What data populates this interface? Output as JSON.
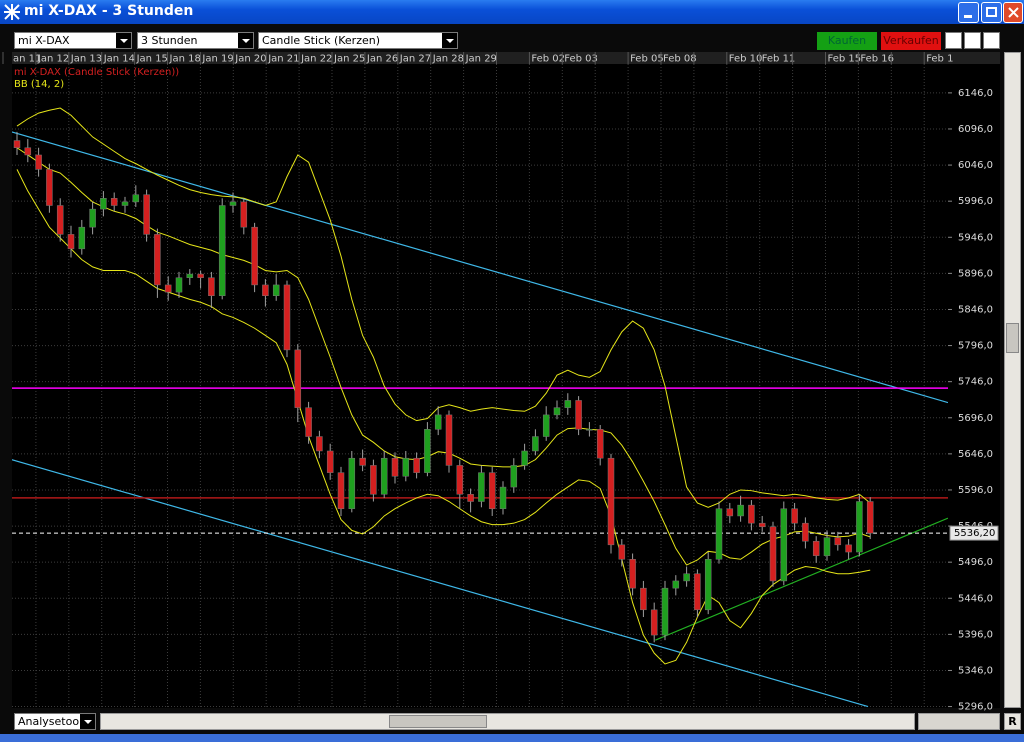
{
  "window": {
    "title": "mi X-DAX - 3 Stunden",
    "instrument": "mi X-DAX",
    "interval": "3 Stunden",
    "chart_style": "Candle Stick (Kerzen)",
    "buy": "Kaufen",
    "sell": "Verkaufen",
    "tool": "Analysetool",
    "reset": "R"
  },
  "chart_data": {
    "type": "candlestick",
    "grid": true,
    "categories": [
      "an 11",
      "Jan 12",
      "Jan 13",
      "Jan 14",
      "Jan 15",
      "Jan 18",
      "Jan 19",
      "Jan 20",
      "Jan 21",
      "Jan 22",
      "Jan 25",
      "Jan 26",
      "Jan 27",
      "Jan 28",
      "Jan 29",
      null,
      "Feb 02",
      "Feb 03",
      null,
      "Feb 05",
      "Feb 08",
      null,
      "Feb 10",
      "Feb 11",
      null,
      "Feb 15",
      "Feb 16",
      null,
      "Feb 1"
    ],
    "ylim": [
      5294,
      6186
    ],
    "yticks": [
      {
        "value": 6146,
        "label": "6146,0"
      },
      {
        "value": 6096,
        "label": "6096,0"
      },
      {
        "value": 6046,
        "label": "6046,0"
      },
      {
        "value": 5996,
        "label": "5996,0"
      },
      {
        "value": 5946,
        "label": "5946,0"
      },
      {
        "value": 5896,
        "label": "5896,0"
      },
      {
        "value": 5846,
        "label": "5846,0"
      },
      {
        "value": 5796,
        "label": "5796,0"
      },
      {
        "value": 5746,
        "label": "5746,0"
      },
      {
        "value": 5696,
        "label": "5696,0"
      },
      {
        "value": 5646,
        "label": "5646,0"
      },
      {
        "value": 5596,
        "label": "5596,0"
      },
      {
        "value": 5546,
        "label": "5546,0"
      },
      {
        "value": 5496,
        "label": "5496,0"
      },
      {
        "value": 5446,
        "label": "5446,0"
      },
      {
        "value": 5396,
        "label": "5396,0"
      },
      {
        "value": 5346,
        "label": "5346,0"
      },
      {
        "value": 5296,
        "label": "5296,0"
      }
    ],
    "series": [
      {
        "name": "mi X-DAX (Candle Stick (Kerzen))",
        "color": "#d42020",
        "up_color": "#1fa01f",
        "candles": [
          [
            6080,
            6092,
            6060,
            6070
          ],
          [
            6070,
            6082,
            6050,
            6060
          ],
          [
            6060,
            6070,
            6030,
            6040
          ],
          [
            6040,
            6048,
            5980,
            5990
          ],
          [
            5990,
            6000,
            5940,
            5950
          ],
          [
            5950,
            5962,
            5918,
            5930
          ],
          [
            5930,
            5970,
            5922,
            5960
          ],
          [
            5960,
            5995,
            5950,
            5985
          ],
          [
            5985,
            6010,
            5975,
            6000
          ],
          [
            6000,
            6008,
            5982,
            5990
          ],
          [
            5990,
            6002,
            5980,
            5995
          ],
          [
            5995,
            6018,
            5988,
            6005
          ],
          [
            6005,
            6012,
            5940,
            5950
          ],
          [
            5950,
            5958,
            5862,
            5880
          ],
          [
            5880,
            5892,
            5858,
            5870
          ],
          [
            5870,
            5898,
            5862,
            5890
          ],
          [
            5890,
            5902,
            5880,
            5895
          ],
          [
            5895,
            5900,
            5875,
            5890
          ],
          [
            5890,
            5898,
            5848,
            5865
          ],
          [
            5865,
            6000,
            5860,
            5990
          ],
          [
            5990,
            6008,
            5980,
            5995
          ],
          [
            5995,
            6000,
            5950,
            5960
          ],
          [
            5960,
            5966,
            5870,
            5880
          ],
          [
            5880,
            5888,
            5850,
            5865
          ],
          [
            5865,
            5895,
            5858,
            5880
          ],
          [
            5880,
            5886,
            5780,
            5790
          ],
          [
            5790,
            5798,
            5690,
            5710
          ],
          [
            5710,
            5718,
            5660,
            5670
          ],
          [
            5670,
            5678,
            5640,
            5650
          ],
          [
            5650,
            5660,
            5610,
            5620
          ],
          [
            5620,
            5628,
            5560,
            5570
          ],
          [
            5570,
            5650,
            5565,
            5640
          ],
          [
            5640,
            5652,
            5622,
            5630
          ],
          [
            5630,
            5638,
            5580,
            5590
          ],
          [
            5590,
            5650,
            5585,
            5640
          ],
          [
            5640,
            5648,
            5605,
            5615
          ],
          [
            5615,
            5650,
            5608,
            5640
          ],
          [
            5640,
            5648,
            5612,
            5620
          ],
          [
            5620,
            5690,
            5615,
            5680
          ],
          [
            5680,
            5712,
            5672,
            5700
          ],
          [
            5700,
            5706,
            5620,
            5630
          ],
          [
            5630,
            5638,
            5570,
            5590
          ],
          [
            5590,
            5598,
            5565,
            5580
          ],
          [
            5580,
            5630,
            5572,
            5620
          ],
          [
            5620,
            5628,
            5560,
            5570
          ],
          [
            5570,
            5608,
            5562,
            5600
          ],
          [
            5600,
            5640,
            5592,
            5630
          ],
          [
            5630,
            5660,
            5624,
            5650
          ],
          [
            5650,
            5680,
            5644,
            5670
          ],
          [
            5670,
            5712,
            5664,
            5700
          ],
          [
            5700,
            5720,
            5694,
            5710
          ],
          [
            5710,
            5730,
            5700,
            5720
          ],
          [
            5720,
            5726,
            5672,
            5680
          ],
          [
            5680,
            5690,
            5670,
            5680
          ],
          [
            5680,
            5686,
            5630,
            5640
          ],
          [
            5640,
            5646,
            5508,
            5520
          ],
          [
            5520,
            5528,
            5490,
            5500
          ],
          [
            5500,
            5508,
            5450,
            5460
          ],
          [
            5460,
            5470,
            5420,
            5430
          ],
          [
            5430,
            5440,
            5385,
            5395
          ],
          [
            5395,
            5470,
            5388,
            5460
          ],
          [
            5460,
            5478,
            5450,
            5470
          ],
          [
            5470,
            5490,
            5462,
            5480
          ],
          [
            5480,
            5486,
            5420,
            5430
          ],
          [
            5430,
            5510,
            5424,
            5500
          ],
          [
            5500,
            5580,
            5494,
            5570
          ],
          [
            5570,
            5578,
            5550,
            5560
          ],
          [
            5560,
            5588,
            5552,
            5575
          ],
          [
            5575,
            5582,
            5540,
            5550
          ],
          [
            5550,
            5560,
            5538,
            5545
          ],
          [
            5545,
            5552,
            5462,
            5470
          ],
          [
            5470,
            5580,
            5464,
            5570
          ],
          [
            5570,
            5578,
            5540,
            5550
          ],
          [
            5550,
            5558,
            5515,
            5525
          ],
          [
            5525,
            5532,
            5495,
            5505
          ],
          [
            5505,
            5540,
            5498,
            5530
          ],
          [
            5530,
            5538,
            5512,
            5520
          ],
          [
            5520,
            5528,
            5500,
            5510
          ],
          [
            5510,
            5590,
            5504,
            5580
          ],
          [
            5580,
            5586,
            5528,
            5536.2
          ]
        ]
      },
      {
        "name": "BB (14, 2)",
        "color": "#e6e619",
        "upper": [
          6100,
          6110,
          6118,
          6122,
          6125,
          6115,
          6100,
          6085,
          6075,
          6065,
          6055,
          6048,
          6040,
          6032,
          6025,
          6018,
          6012,
          6008,
          6005,
          6003,
          6002,
          6000,
          5995,
          5990,
          5995,
          6030,
          6060,
          6050,
          6010,
          5970,
          5920,
          5860,
          5810,
          5780,
          5740,
          5715,
          5700,
          5692,
          5695,
          5710,
          5714,
          5710,
          5705,
          5708,
          5710,
          5708,
          5706,
          5705,
          5712,
          5730,
          5755,
          5762,
          5755,
          5752,
          5760,
          5790,
          5815,
          5830,
          5820,
          5790,
          5740,
          5670,
          5600,
          5578,
          5572,
          5578,
          5590,
          5596,
          5595,
          5592,
          5590,
          5588,
          5590,
          5588,
          5585,
          5583,
          5582,
          5585,
          5590,
          5578
        ],
        "middle": [
          6070,
          6060,
          6050,
          6040,
          6035,
          6022,
          6008,
          5995,
          5988,
          5982,
          5978,
          5972,
          5962,
          5953,
          5948,
          5942,
          5936,
          5932,
          5928,
          5922,
          5918,
          5914,
          5908,
          5900,
          5898,
          5900,
          5890,
          5860,
          5820,
          5780,
          5738,
          5700,
          5672,
          5662,
          5650,
          5642,
          5639,
          5638,
          5642,
          5649,
          5647,
          5640,
          5632,
          5630,
          5629,
          5628,
          5628,
          5630,
          5638,
          5654,
          5672,
          5681,
          5682,
          5680,
          5679,
          5675,
          5658,
          5635,
          5608,
          5580,
          5548,
          5515,
          5492,
          5499,
          5511,
          5509,
          5502,
          5500,
          5510,
          5521,
          5528,
          5532,
          5538,
          5539,
          5536,
          5533,
          5531,
          5532,
          5536,
          5531
        ],
        "lower": [
          6040,
          6010,
          5985,
          5960,
          5945,
          5930,
          5915,
          5905,
          5900,
          5900,
          5900,
          5895,
          5885,
          5875,
          5870,
          5865,
          5860,
          5856,
          5850,
          5840,
          5835,
          5828,
          5820,
          5810,
          5800,
          5770,
          5720,
          5670,
          5630,
          5590,
          5555,
          5540,
          5535,
          5545,
          5560,
          5570,
          5578,
          5585,
          5590,
          5588,
          5580,
          5570,
          5560,
          5552,
          5548,
          5548,
          5550,
          5555,
          5565,
          5578,
          5590,
          5600,
          5610,
          5608,
          5598,
          5560,
          5500,
          5440,
          5395,
          5370,
          5355,
          5360,
          5385,
          5420,
          5450,
          5440,
          5415,
          5405,
          5425,
          5450,
          5465,
          5475,
          5485,
          5490,
          5488,
          5483,
          5480,
          5480,
          5482,
          5485
        ]
      }
    ],
    "hlines": [
      {
        "value": 5737,
        "color": "#ff00ff"
      },
      {
        "value": 5585,
        "color": "#b01818"
      },
      {
        "value": 5536.2,
        "color": "#ffffff",
        "dashed": true,
        "label": "5536,20"
      }
    ],
    "trendlines": [
      {
        "color": "#3fb8e8",
        "x": [
          -0.5,
          86.2
        ],
        "y": [
          6092,
          5717
        ]
      },
      {
        "color": "#3fb8e8",
        "x": [
          -0.5,
          78.8
        ],
        "y": [
          5638,
          5296
        ]
      },
      {
        "color": "#22b022",
        "x": [
          59.1,
          86.2
        ],
        "y": [
          5388,
          5557
        ]
      }
    ]
  }
}
